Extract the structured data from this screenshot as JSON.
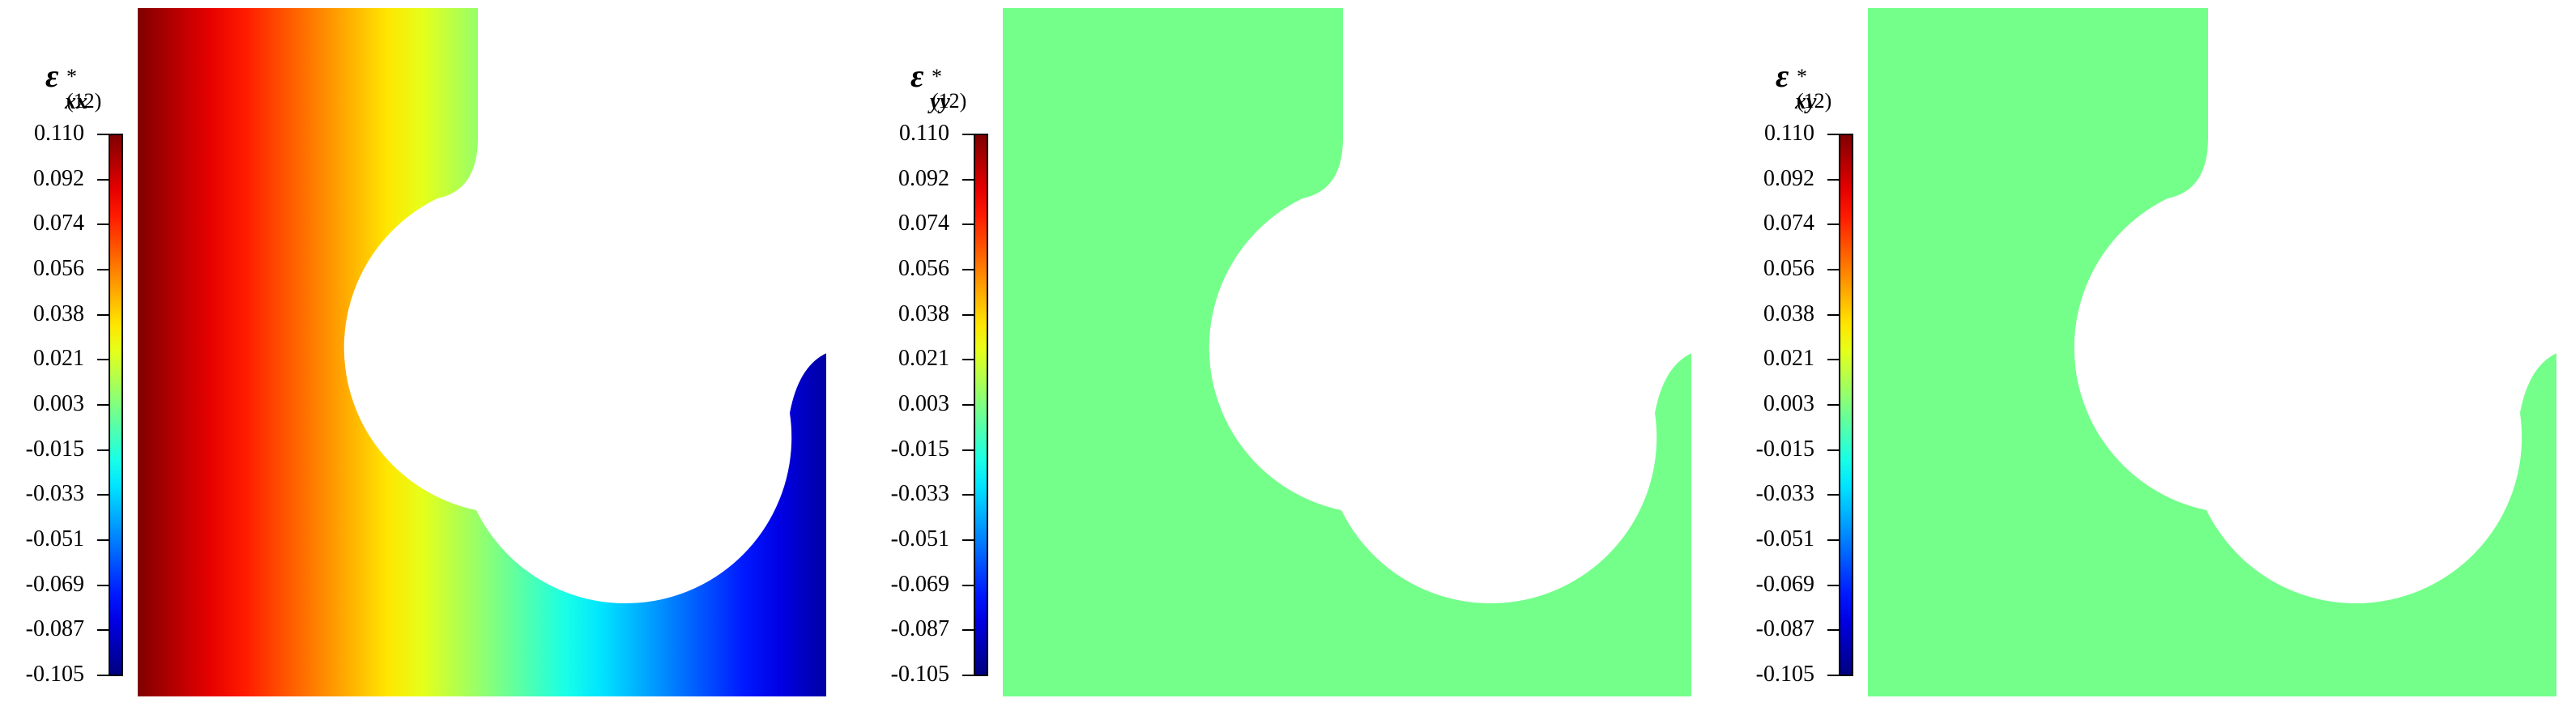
{
  "chart_data": [
    {
      "type": "heatmap",
      "colorbar": {
        "label": "ε*(12) xx",
        "label_symbol": "ε",
        "label_subscript": "xx",
        "label_superscript": "*(12)",
        "min": -0.105,
        "max": 0.11,
        "tick_labels": [
          "0.110",
          "0.092",
          "0.074",
          "0.056",
          "0.038",
          "0.021",
          "0.003",
          "-0.015",
          "-0.033",
          "-0.051",
          "-0.069",
          "-0.087",
          "-0.105"
        ],
        "colormap": "jet"
      },
      "field": {
        "kind": "linear-gradient-x",
        "value_left": 0.11,
        "value_right": -0.105
      }
    },
    {
      "type": "heatmap",
      "colorbar": {
        "label": "ε*(12) yy",
        "label_symbol": "ε",
        "label_subscript": "yy",
        "label_superscript": "*(12)",
        "min": -0.105,
        "max": 0.11,
        "tick_labels": [
          "0.110",
          "0.092",
          "0.074",
          "0.056",
          "0.038",
          "0.021",
          "0.003",
          "-0.015",
          "-0.033",
          "-0.051",
          "-0.069",
          "-0.087",
          "-0.105"
        ],
        "colormap": "jet"
      },
      "field": {
        "kind": "uniform",
        "value": 0.0
      }
    },
    {
      "type": "heatmap",
      "colorbar": {
        "label": "ε*(12) xy",
        "label_symbol": "ε",
        "label_subscript": "xy",
        "label_superscript": "*(12)",
        "min": -0.105,
        "max": 0.11,
        "tick_labels": [
          "0.110",
          "0.092",
          "0.074",
          "0.056",
          "0.038",
          "0.021",
          "0.003",
          "-0.015",
          "-0.033",
          "-0.051",
          "-0.069",
          "-0.087",
          "-0.105"
        ],
        "colormap": "jet"
      },
      "field": {
        "kind": "uniform",
        "value": 0.0
      }
    }
  ]
}
